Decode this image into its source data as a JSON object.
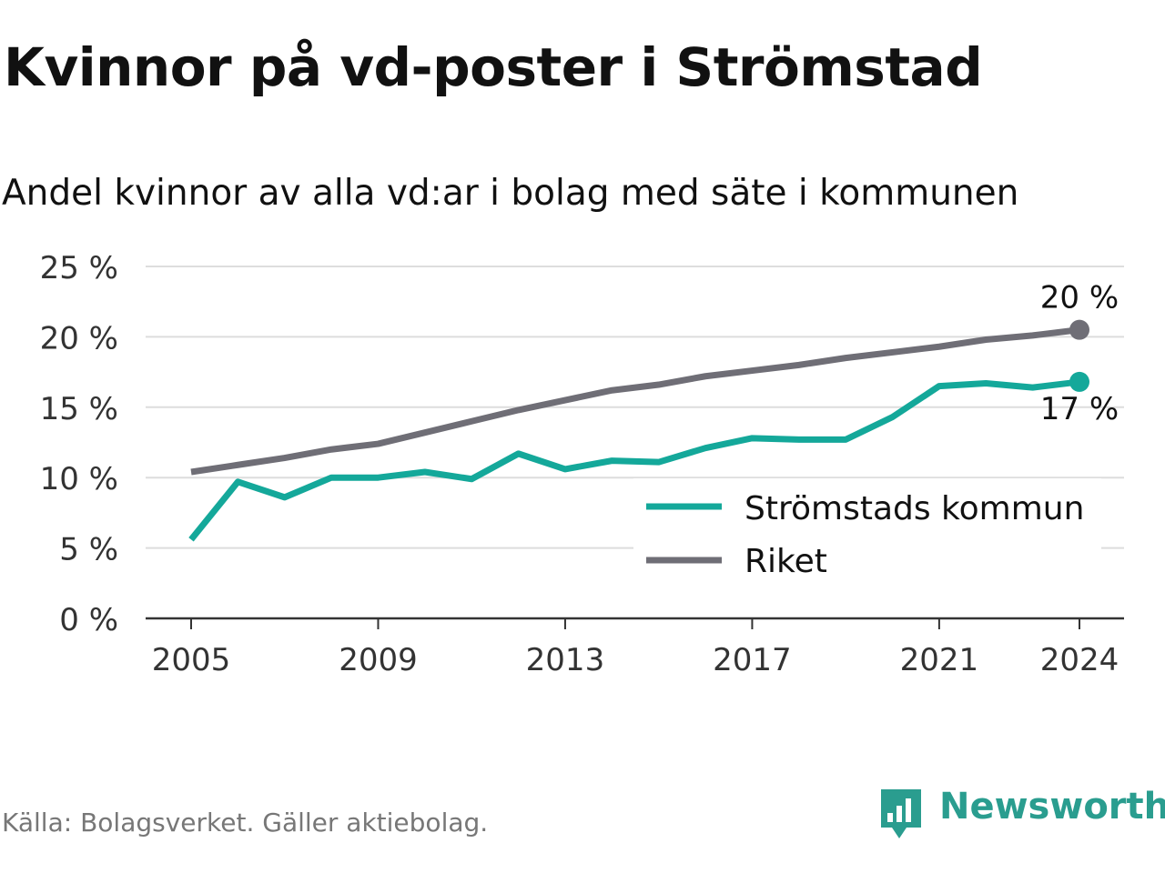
{
  "title": "Kvinnor på vd-poster i Strömstad",
  "subtitle": "Andel kvinnor av alla vd:ar i bolag med säte i kommunen",
  "source": "Källa: Bolagsverket. Gäller aktiebolag.",
  "brand": {
    "name": "Newsworthy",
    "icon": "newsworthy-logo-icon",
    "color": "#2a9d8f"
  },
  "chart_data": {
    "type": "line",
    "x": [
      2005,
      2006,
      2007,
      2008,
      2009,
      2010,
      2011,
      2012,
      2013,
      2014,
      2015,
      2016,
      2017,
      2018,
      2019,
      2020,
      2021,
      2022,
      2023,
      2024
    ],
    "xticks": [
      2005,
      2009,
      2013,
      2017,
      2021,
      2024
    ],
    "xtick_labels": [
      "2005",
      "2009",
      "2013",
      "2017",
      "2021",
      "2024"
    ],
    "yticks": [
      0,
      5,
      10,
      15,
      20,
      25
    ],
    "ytick_labels": [
      "0 %",
      "5 %",
      "10 %",
      "15 %",
      "20 %",
      "25 %"
    ],
    "ylim": [
      0,
      25
    ],
    "grid": true,
    "legend_position": "bottom-right",
    "series": [
      {
        "name": "Strömstads kommun",
        "color": "#14a89a",
        "values": [
          5.6,
          9.7,
          8.6,
          10.0,
          10.0,
          10.4,
          9.9,
          11.7,
          10.6,
          11.2,
          11.1,
          12.1,
          12.8,
          12.7,
          12.7,
          14.3,
          16.5,
          16.7,
          16.4,
          16.8
        ],
        "end_label": "17 %"
      },
      {
        "name": "Riket",
        "color": "#6f6e76",
        "values": [
          10.4,
          10.9,
          11.4,
          12.0,
          12.4,
          13.2,
          14.0,
          14.8,
          15.5,
          16.2,
          16.6,
          17.2,
          17.6,
          18.0,
          18.5,
          18.9,
          19.3,
          19.8,
          20.1,
          20.5
        ],
        "end_label": "20 %"
      }
    ]
  }
}
